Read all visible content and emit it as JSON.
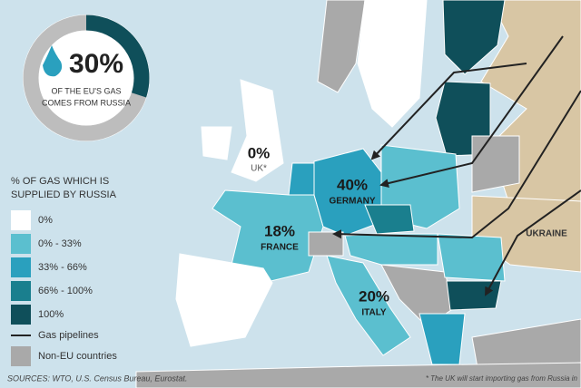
{
  "headline": {
    "share": {
      "value": 30,
      "label": "30%"
    },
    "line1": "OF THE EU'S GAS",
    "line2": "COMES FROM RUSSIA"
  },
  "legend": {
    "title_line1": "% OF GAS WHICH IS",
    "title_line2": "SUPPLIED BY RUSSIA",
    "items": [
      "0%",
      "0% - 33%",
      "33% - 66%",
      "66% - 100%",
      "100%",
      "Gas pipelines",
      "Non-EU countries"
    ]
  },
  "labels": {
    "uk_value": "0%",
    "uk_name": "UK*",
    "germany_value": "40%",
    "germany_name": "GERMANY",
    "france_value": "18%",
    "france_name": "FRANCE",
    "italy_value": "20%",
    "italy_name": "ITALY",
    "ukraine_name": "UKRAINE"
  },
  "footer": {
    "sources": "SOURCES: WTO, U.S. Census Bureau, Eurostat.",
    "note": "* The UK will start importing gas from Russia in"
  }
}
